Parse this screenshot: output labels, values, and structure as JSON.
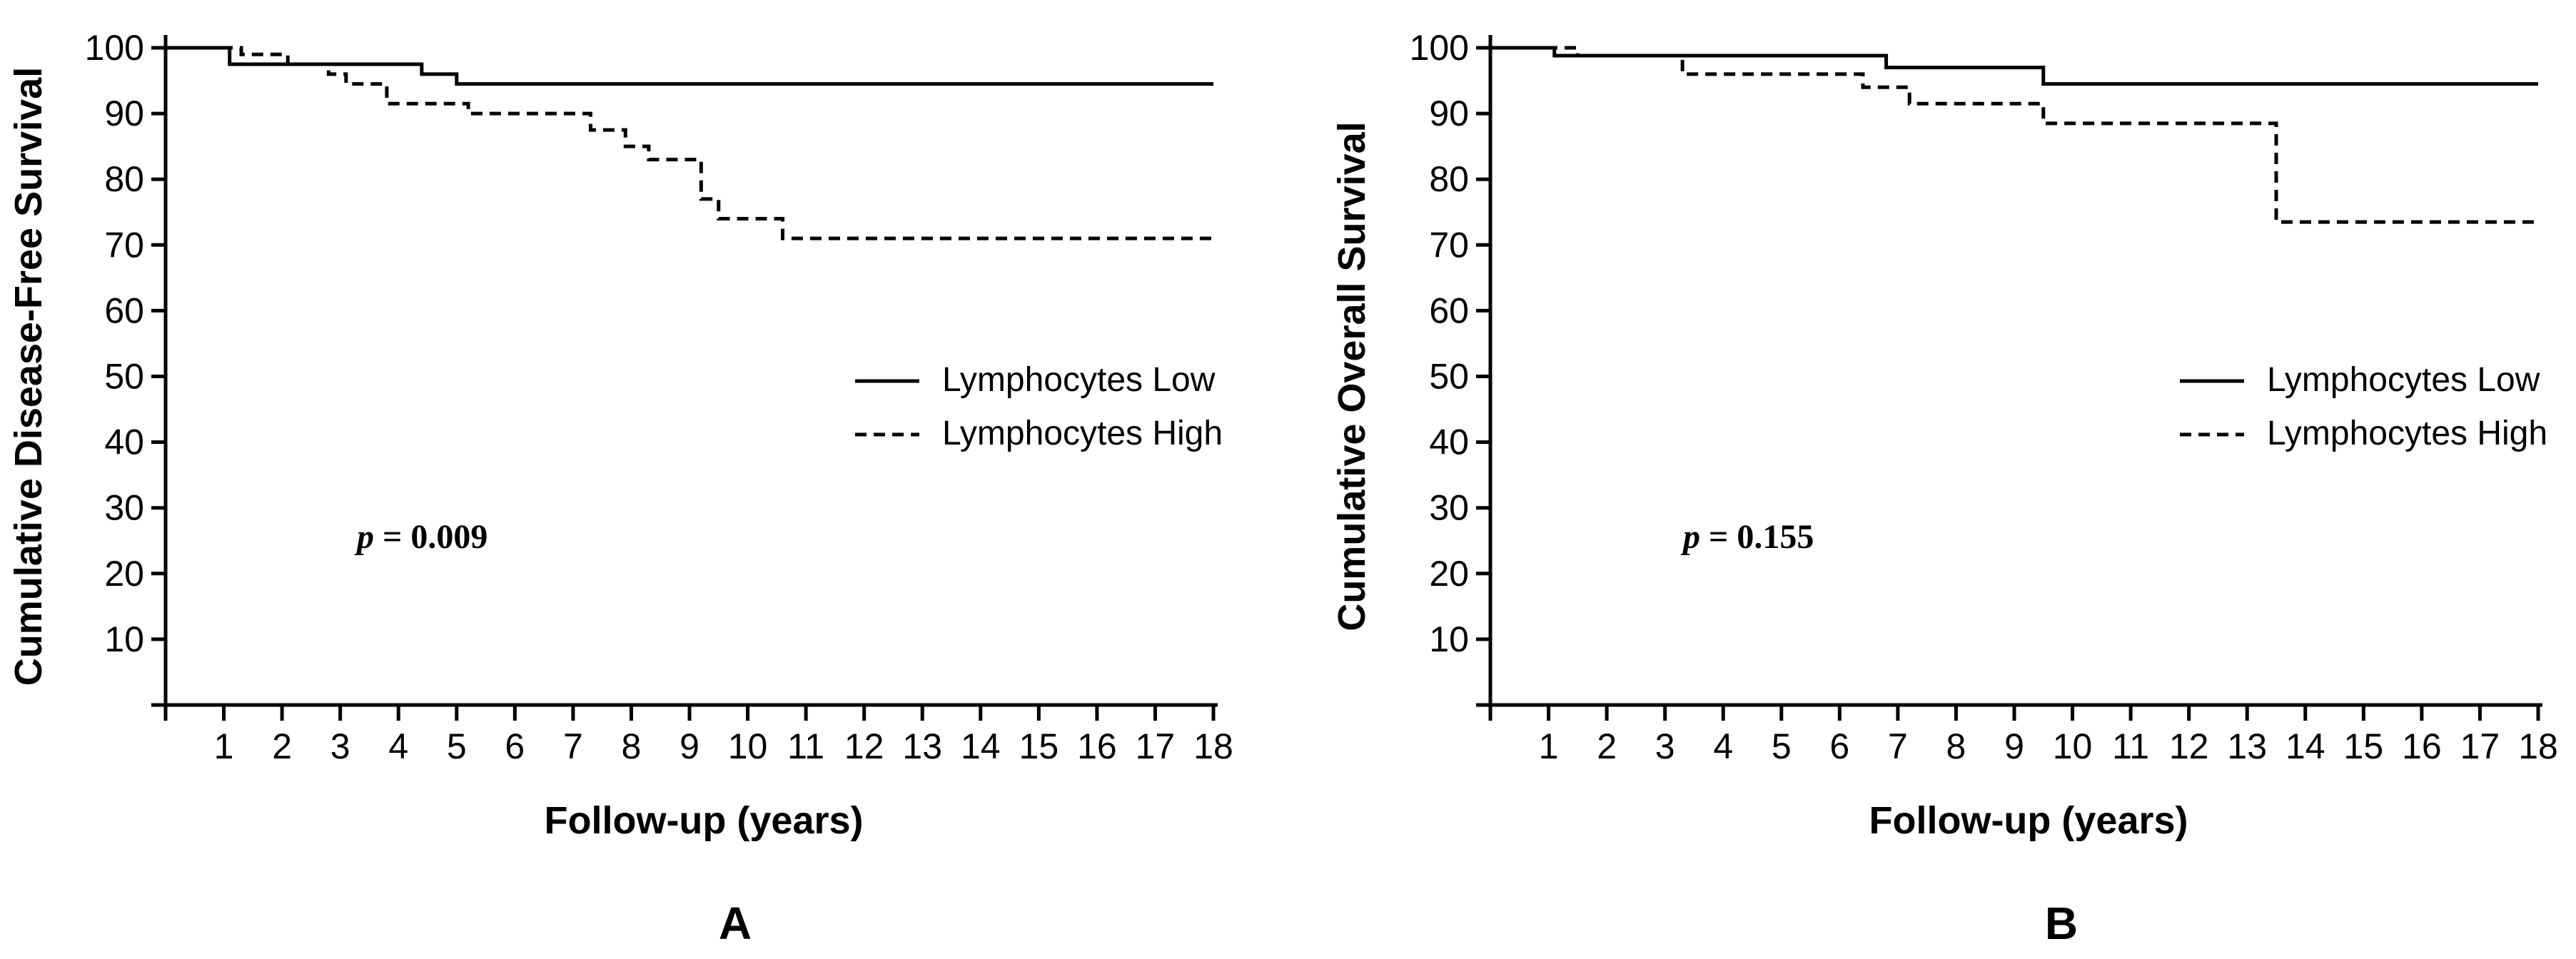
{
  "chart_data": [
    {
      "type": "line",
      "panel_label": "A",
      "xlabel": "Follow-up (years)",
      "ylabel": "Cumulative Disease-Free Survival",
      "xlim": [
        0,
        18
      ],
      "ylim": [
        0,
        100
      ],
      "x_ticks": [
        1,
        2,
        3,
        4,
        5,
        6,
        7,
        8,
        9,
        10,
        11,
        12,
        13,
        14,
        15,
        16,
        17,
        18
      ],
      "y_ticks": [
        10,
        20,
        30,
        40,
        50,
        60,
        70,
        80,
        90,
        100
      ],
      "grid": false,
      "legend_position": "right-middle",
      "annotation": {
        "p_symbol": "p",
        "p_text": " = 0.009"
      },
      "series": [
        {
          "name": "Lymphocytes Low",
          "style": "solid",
          "step_points": [
            [
              0,
              100
            ],
            [
              1.1,
              97.5
            ],
            [
              4.4,
              96
            ],
            [
              5,
              94.5
            ],
            [
              18,
              94.5
            ]
          ]
        },
        {
          "name": "Lymphocytes High",
          "style": "dashed",
          "step_points": [
            [
              0,
              100
            ],
            [
              1.3,
              99
            ],
            [
              2.1,
              97.5
            ],
            [
              2.8,
              96
            ],
            [
              3.1,
              94.5
            ],
            [
              3.8,
              91.5
            ],
            [
              5.2,
              90
            ],
            [
              7.3,
              87.5
            ],
            [
              7.9,
              85
            ],
            [
              8.3,
              83
            ],
            [
              9.2,
              77
            ],
            [
              9.5,
              74
            ],
            [
              10.6,
              71
            ],
            [
              18,
              71
            ]
          ]
        }
      ]
    },
    {
      "type": "line",
      "panel_label": "B",
      "xlabel": "Follow-up (years)",
      "ylabel": "Cumulative Overall Survival",
      "xlim": [
        0,
        18
      ],
      "ylim": [
        0,
        100
      ],
      "x_ticks": [
        1,
        2,
        3,
        4,
        5,
        6,
        7,
        8,
        9,
        10,
        11,
        12,
        13,
        14,
        15,
        16,
        17,
        18
      ],
      "y_ticks": [
        10,
        20,
        30,
        40,
        50,
        60,
        70,
        80,
        90,
        100
      ],
      "grid": false,
      "legend_position": "right-middle",
      "annotation": {
        "p_symbol": "p",
        "p_text": " = 0.155"
      },
      "series": [
        {
          "name": "Lymphocytes Low",
          "style": "solid",
          "step_points": [
            [
              0,
              100
            ],
            [
              1.1,
              98.8
            ],
            [
              6.8,
              97
            ],
            [
              9.5,
              94.5
            ],
            [
              18,
              94.5
            ]
          ]
        },
        {
          "name": "Lymphocytes High",
          "style": "dashed",
          "step_points": [
            [
              0,
              100
            ],
            [
              1.5,
              98.8
            ],
            [
              3.3,
              96
            ],
            [
              6.4,
              94
            ],
            [
              7.2,
              91.5
            ],
            [
              9.5,
              88.5
            ],
            [
              13.5,
              73.5
            ],
            [
              18,
              73.5
            ]
          ]
        }
      ]
    }
  ]
}
